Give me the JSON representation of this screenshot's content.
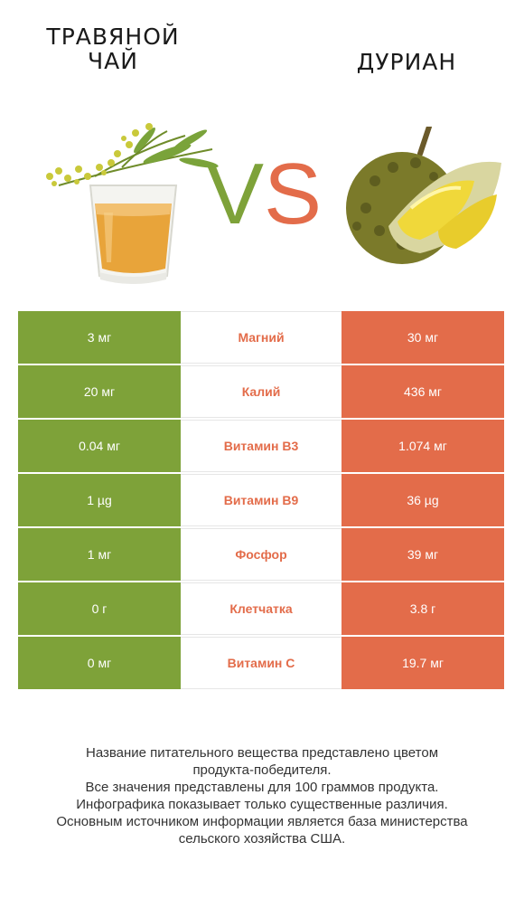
{
  "header": {
    "left_title_line1": "ТРАВЯНОЙ",
    "left_title_line2": "ЧАЙ",
    "right_title": "ДУРИАН",
    "vs_v": "V",
    "vs_s": "S"
  },
  "colors": {
    "left_accent": "#7ea239",
    "right_accent": "#e36c4a"
  },
  "rows": [
    {
      "left": "3 мг",
      "nutrient": "Магний",
      "right": "30 мг"
    },
    {
      "left": "20 мг",
      "nutrient": "Калий",
      "right": "436 мг"
    },
    {
      "left": "0.04 мг",
      "nutrient": "Витамин B3",
      "right": "1.074 мг"
    },
    {
      "left": "1 µg",
      "nutrient": "Витамин B9",
      "right": "36 µg"
    },
    {
      "left": "1 мг",
      "nutrient": "Фосфор",
      "right": "39 мг"
    },
    {
      "left": "0 г",
      "nutrient": "Клетчатка",
      "right": "3.8 г"
    },
    {
      "left": "0 мг",
      "nutrient": "Витамин C",
      "right": "19.7 мг"
    }
  ],
  "footer": {
    "line1": "Название питательного вещества представлено цветом",
    "line2": "продукта-победителя.",
    "line3": "Все значения представлены для 100 граммов продукта.",
    "line4": "Инфографика показывает только существенные различия.",
    "line5": "Основным источником информации является база министерства",
    "line6": "сельского хозяйства США."
  }
}
